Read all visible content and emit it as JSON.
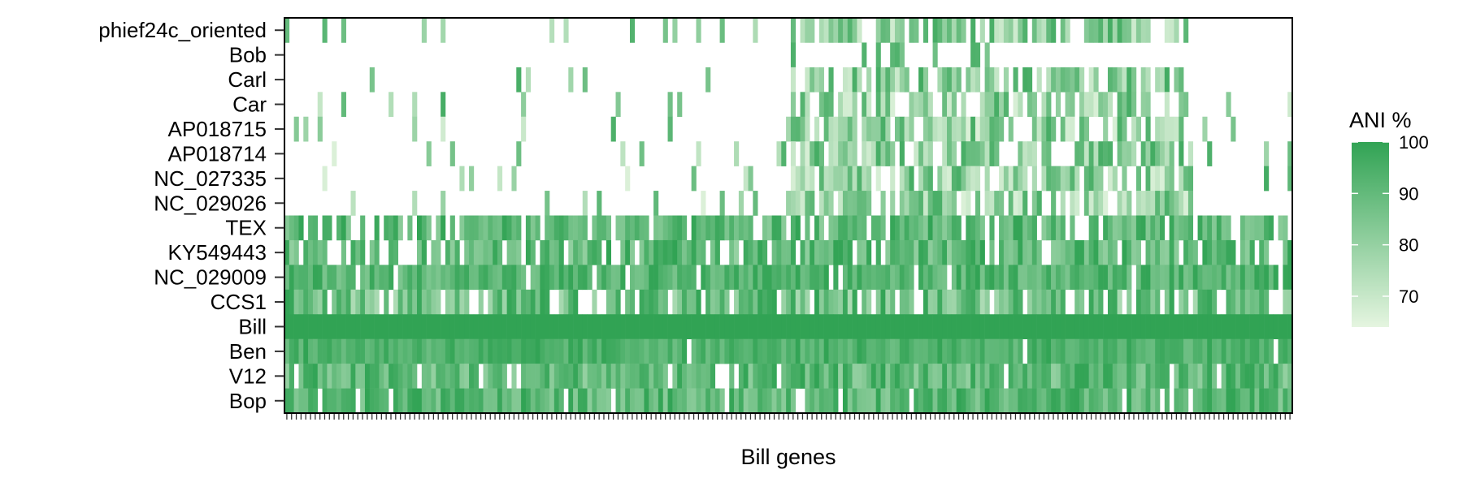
{
  "chart_data": {
    "type": "heatmap",
    "title": "",
    "xlabel": "Bill genes",
    "ylabel": "",
    "rows": [
      "phief24c_oriented",
      "Bob",
      "Carl",
      "Car",
      "AP018715",
      "AP018714",
      "NC_027335",
      "NC_029026",
      "TEX",
      "KY549443",
      "NC_029009",
      "CCS1",
      "Bill",
      "Ben",
      "V12",
      "Bop"
    ],
    "n_genes": 213,
    "tick_labels_shown": false,
    "grid": false,
    "legend": {
      "title": "ANI %",
      "ticks": [
        70,
        80,
        90,
        100
      ],
      "range": [
        64,
        100
      ],
      "placement": "right"
    },
    "colors": {
      "high": "#31a354",
      "low": "#e5f5e0",
      "missing": "#ffffff",
      "frame": "#000000"
    },
    "row_coverage_ranges": [
      {
        "row": "phief24c_oriented",
        "coverage": 0.3,
        "ani_range": [
          68,
          96
        ]
      },
      {
        "row": "Bob",
        "coverage": 0.03,
        "ani_range": [
          85,
          95
        ]
      },
      {
        "row": "Carl",
        "coverage": 0.28,
        "ani_range": [
          68,
          97
        ]
      },
      {
        "row": "Car",
        "coverage": 0.28,
        "ani_range": [
          66,
          96
        ]
      },
      {
        "row": "AP018715",
        "coverage": 0.28,
        "ani_range": [
          66,
          96
        ]
      },
      {
        "row": "AP018714",
        "coverage": 0.27,
        "ani_range": [
          66,
          97
        ]
      },
      {
        "row": "NC_027335",
        "coverage": 0.28,
        "ani_range": [
          66,
          96
        ]
      },
      {
        "row": "NC_029026",
        "coverage": 0.28,
        "ani_range": [
          66,
          95
        ]
      },
      {
        "row": "TEX",
        "coverage": 0.82,
        "ani_range": [
          82,
          100
        ]
      },
      {
        "row": "KY549443",
        "coverage": 0.75,
        "ani_range": [
          80,
          100
        ]
      },
      {
        "row": "NC_029009",
        "coverage": 0.93,
        "ani_range": [
          85,
          100
        ]
      },
      {
        "row": "CCS1",
        "coverage": 0.78,
        "ani_range": [
          75,
          100
        ]
      },
      {
        "row": "Bill",
        "coverage": 1.0,
        "ani_range": [
          100,
          100
        ]
      },
      {
        "row": "Ben",
        "coverage": 0.98,
        "ani_range": [
          88,
          100
        ]
      },
      {
        "row": "V12",
        "coverage": 0.92,
        "ani_range": [
          80,
          100
        ]
      },
      {
        "row": "Bop",
        "coverage": 0.92,
        "ani_range": [
          82,
          100
        ]
      }
    ]
  }
}
